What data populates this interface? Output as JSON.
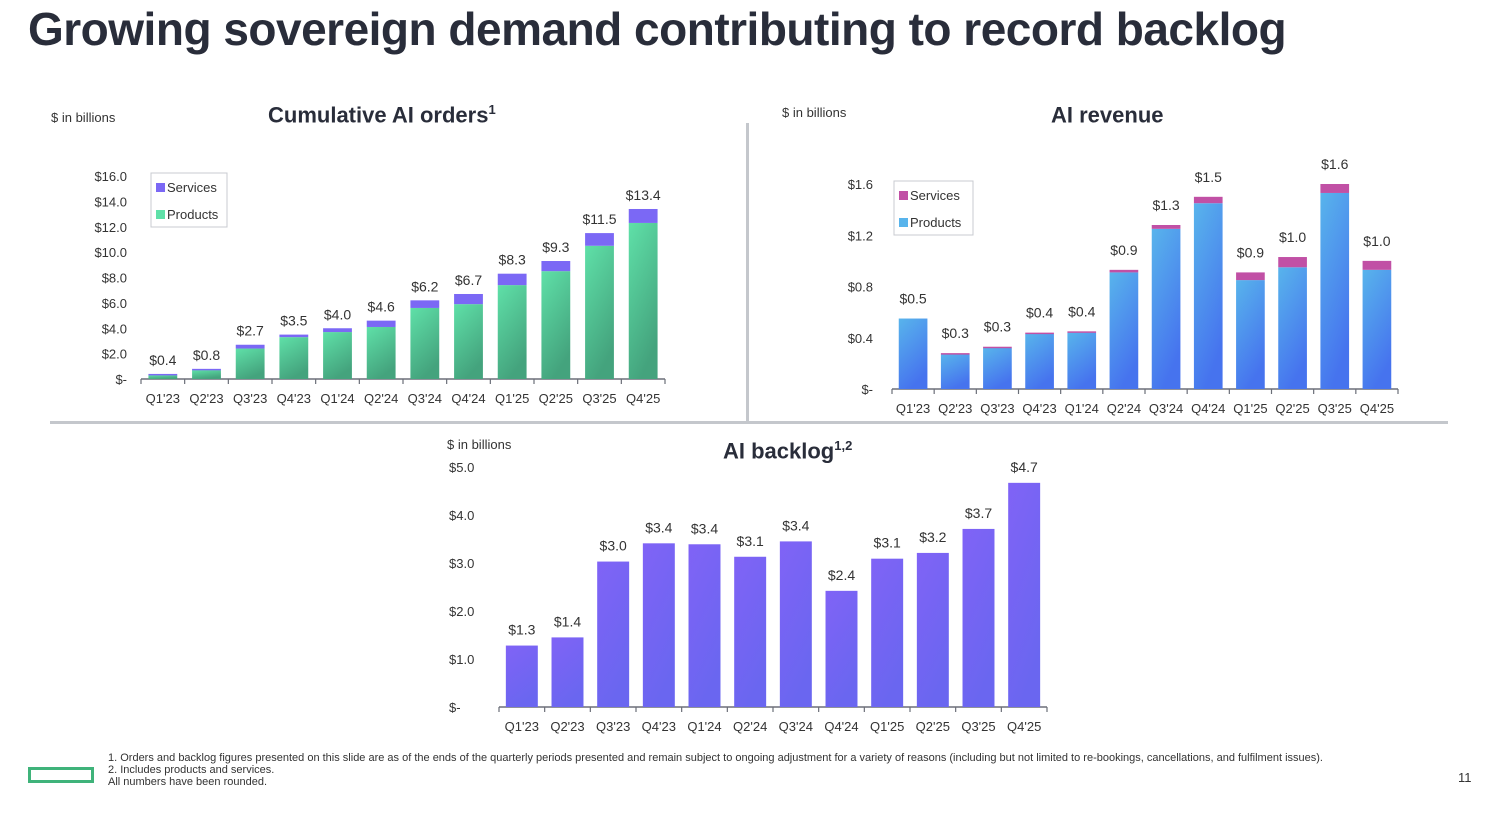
{
  "slide": {
    "title": "Growing sovereign demand contributing to record backlog",
    "page_number": "11",
    "footnotes": [
      "1.  Orders and backlog figures presented on this slide are as of the ends of the quarterly periods presented and remain subject to ongoing adjustment for a variety of reasons (including but not limited to re-bookings, cancellations, and fulfilment issues).",
      "2.  Includes products and services.",
      "All numbers have been rounded."
    ],
    "colors": {
      "orders_products": "#4fcf9a",
      "orders_services": "#7b68f5",
      "revenue_products": "#4a90ee",
      "revenue_services": "#c150a5",
      "backlog": "#7663f4",
      "logo": "#3fb37a"
    }
  },
  "chart_data": [
    {
      "id": "orders",
      "type": "bar",
      "stacked": true,
      "title": "Cumulative AI orders",
      "title_sup": "1",
      "unit_label": "$ in billions",
      "categories": [
        "Q1'23",
        "Q2'23",
        "Q3'23",
        "Q4'23",
        "Q1'24",
        "Q2'24",
        "Q3'24",
        "Q4'24",
        "Q1'25",
        "Q2'25",
        "Q3'25",
        "Q4'25"
      ],
      "series": [
        {
          "name": "Products",
          "values": [
            0.3,
            0.7,
            2.4,
            3.3,
            3.7,
            4.1,
            5.6,
            5.9,
            7.4,
            8.5,
            10.5,
            12.3
          ]
        },
        {
          "name": "Services",
          "values": [
            0.1,
            0.1,
            0.3,
            0.2,
            0.3,
            0.5,
            0.6,
            0.8,
            0.9,
            0.8,
            1.0,
            1.1
          ]
        }
      ],
      "totals": [
        0.4,
        0.8,
        2.7,
        3.5,
        4.0,
        4.6,
        6.2,
        6.7,
        8.3,
        9.3,
        11.5,
        13.4
      ],
      "data_labels": [
        "$0.4",
        "$0.8",
        "$2.7",
        "$3.5",
        "$4.0",
        "$4.6",
        "$6.2",
        "$6.7",
        "$8.3",
        "$9.3",
        "$11.5",
        "$13.4"
      ],
      "yticks": [
        0,
        2,
        4,
        6,
        8,
        10,
        12,
        14,
        16
      ],
      "ytick_labels": [
        "$-",
        "$2.0",
        "$4.0",
        "$6.0",
        "$8.0",
        "$10.0",
        "$12.0",
        "$14.0",
        "$16.0"
      ],
      "ylim": [
        0,
        16
      ],
      "legend": [
        "Services",
        "Products"
      ],
      "legend_position": "top-left",
      "grid": false
    },
    {
      "id": "revenue",
      "type": "bar",
      "stacked": true,
      "title": "AI revenue",
      "title_sup": "",
      "unit_label": "$ in billions",
      "categories": [
        "Q1'23",
        "Q2'23",
        "Q3'23",
        "Q4'23",
        "Q1'24",
        "Q2'24",
        "Q3'24",
        "Q4'24",
        "Q1'25",
        "Q2'25",
        "Q3'25",
        "Q4'25"
      ],
      "series": [
        {
          "name": "Products",
          "values": [
            0.55,
            0.27,
            0.32,
            0.43,
            0.44,
            0.91,
            1.25,
            1.45,
            0.85,
            0.95,
            1.53,
            0.93
          ]
        },
        {
          "name": "Services",
          "values": [
            0.0,
            0.01,
            0.01,
            0.01,
            0.01,
            0.02,
            0.03,
            0.05,
            0.06,
            0.08,
            0.07,
            0.07
          ]
        }
      ],
      "totals": [
        0.5,
        0.3,
        0.3,
        0.4,
        0.4,
        0.9,
        1.3,
        1.5,
        0.9,
        1.0,
        1.6,
        1.0
      ],
      "data_labels": [
        "$0.5",
        "$0.3",
        "$0.3",
        "$0.4",
        "$0.4",
        "$0.9",
        "$1.3",
        "$1.5",
        "$0.9",
        "$1.0",
        "$1.6",
        "$1.0"
      ],
      "yticks": [
        0,
        0.4,
        0.8,
        1.2,
        1.6
      ],
      "ytick_labels": [
        "$-",
        "$0.4",
        "$0.8",
        "$1.2",
        "$1.6"
      ],
      "ylim": [
        0,
        1.6
      ],
      "legend": [
        "Services",
        "Products"
      ],
      "legend_position": "top-left",
      "grid": false
    },
    {
      "id": "backlog",
      "type": "bar",
      "stacked": false,
      "title": "AI backlog",
      "title_sup": "1,2",
      "unit_label": "$ in billions",
      "categories": [
        "Q1'23",
        "Q2'23",
        "Q3'23",
        "Q4'23",
        "Q1'24",
        "Q2'24",
        "Q3'24",
        "Q4'24",
        "Q1'25",
        "Q2'25",
        "Q3'25",
        "Q4'25"
      ],
      "values": [
        1.28,
        1.45,
        3.03,
        3.41,
        3.39,
        3.13,
        3.45,
        2.42,
        3.09,
        3.21,
        3.71,
        4.67
      ],
      "data_labels": [
        "$1.3",
        "$1.4",
        "$3.0",
        "$3.4",
        "$3.4",
        "$3.1",
        "$3.4",
        "$2.4",
        "$3.1",
        "$3.2",
        "$3.7",
        "$4.7"
      ],
      "yticks": [
        0,
        1,
        2,
        3,
        4,
        5
      ],
      "ytick_labels": [
        "$-",
        "$1.0",
        "$2.0",
        "$3.0",
        "$4.0",
        "$5.0"
      ],
      "ylim": [
        0,
        5
      ],
      "legend": [],
      "grid": false
    }
  ]
}
